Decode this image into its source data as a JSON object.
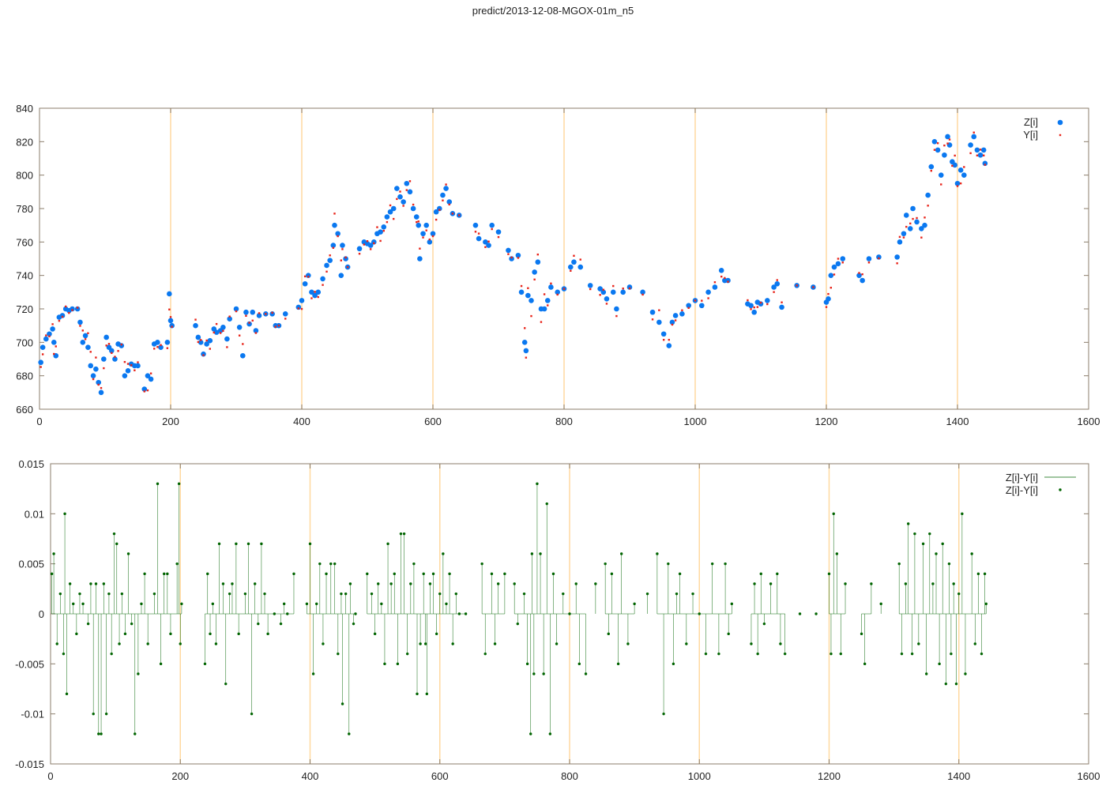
{
  "chart_data": [
    {
      "type": "scatter",
      "title": "predict/2013-12-08-MGOX-01m_n5",
      "xlim": [
        0,
        1600
      ],
      "ylim": [
        660,
        840
      ],
      "xticks": [
        0,
        200,
        400,
        600,
        800,
        1000,
        1200,
        1400,
        1600
      ],
      "yticks": [
        660,
        680,
        700,
        720,
        740,
        760,
        780,
        800,
        820,
        840
      ],
      "grid": "vertical at x ticks",
      "legend": "top-right",
      "series": [
        {
          "name": "Z[i]",
          "color": "#0a78f0",
          "marker": "large-dot"
        },
        {
          "name": "Y[i]",
          "color": "#e8241a",
          "marker": "small-dot",
          "derived": "Y = Z / (1 + residual)"
        }
      ]
    },
    {
      "type": "line",
      "xlim": [
        0,
        1600
      ],
      "ylim": [
        -0.015,
        0.015
      ],
      "xticks": [
        0,
        200,
        400,
        600,
        800,
        1000,
        1200,
        1400,
        1600
      ],
      "yticks": [
        -0.015,
        -0.01,
        -0.005,
        0,
        0.005,
        0.01,
        0.015
      ],
      "ytick_labels": [
        "-0.015",
        "-0.01",
        "-0.005",
        "0",
        "0.005",
        "0.01",
        "0.015"
      ],
      "grid": "vertical at x ticks",
      "legend": "top-right",
      "series": [
        {
          "name": "Z[i]-Y[i]",
          "color": "#006400",
          "style": "impulses"
        },
        {
          "name": "Z[i]-Y[i]",
          "color": "#006400",
          "style": "points"
        }
      ]
    }
  ],
  "points_columns": [
    "x",
    "Z",
    "residual"
  ],
  "points": [
    [
      2,
      688,
      0.004
    ],
    [
      5,
      697,
      0.006
    ],
    [
      10,
      702,
      -0.003
    ],
    [
      15,
      705,
      0.002
    ],
    [
      20,
      708,
      -0.004
    ],
    [
      22,
      700,
      0.01
    ],
    [
      25,
      692,
      -0.008
    ],
    [
      30,
      715,
      0.003
    ],
    [
      35,
      716,
      0.001
    ],
    [
      40,
      720,
      -0.002
    ],
    [
      45,
      719,
      0.002
    ],
    [
      50,
      720,
      0.001
    ],
    [
      58,
      720,
      -0.001
    ],
    [
      62,
      712,
      0.003
    ],
    [
      66,
      700,
      -0.01
    ],
    [
      70,
      704,
      0.003
    ],
    [
      74,
      697,
      -0.012
    ],
    [
      78,
      686,
      -0.012
    ],
    [
      82,
      680,
      0.003
    ],
    [
      86,
      684,
      -0.01
    ],
    [
      90,
      676,
      0.002
    ],
    [
      94,
      670,
      -0.004
    ],
    [
      98,
      690,
      0.008
    ],
    [
      102,
      703,
      0.007
    ],
    [
      106,
      697,
      -0.003
    ],
    [
      110,
      695,
      0.002
    ],
    [
      115,
      690,
      -0.002
    ],
    [
      120,
      699,
      0.006
    ],
    [
      125,
      698,
      -0.001
    ],
    [
      130,
      680,
      -0.012
    ],
    [
      135,
      683,
      -0.006
    ],
    [
      140,
      687,
      0.001
    ],
    [
      145,
      686,
      0.004
    ],
    [
      150,
      686,
      -0.003
    ],
    [
      160,
      672,
      0.002
    ],
    [
      165,
      680,
      0.013
    ],
    [
      170,
      678,
      -0.005
    ],
    [
      175,
      699,
      0.004
    ],
    [
      180,
      700,
      0.004
    ],
    [
      185,
      697,
      -0.002
    ],
    [
      195,
      700,
      0.005
    ],
    [
      198,
      729,
      0.013
    ],
    [
      200,
      713,
      -0.003
    ],
    [
      202,
      710,
      0.001
    ],
    [
      238,
      710,
      -0.005
    ],
    [
      242,
      703,
      0.004
    ],
    [
      246,
      700,
      -0.002
    ],
    [
      250,
      693,
      0.001
    ],
    [
      255,
      699,
      -0.003
    ],
    [
      260,
      701,
      0.007
    ],
    [
      266,
      708,
      0.003
    ],
    [
      270,
      706,
      -0.007
    ],
    [
      276,
      707,
      0.002
    ],
    [
      280,
      709,
      0.003
    ],
    [
      286,
      702,
      0.007
    ],
    [
      290,
      714,
      -0.002
    ],
    [
      300,
      720,
      0.002
    ],
    [
      305,
      709,
      0.007
    ],
    [
      310,
      692,
      -0.01
    ],
    [
      315,
      718,
      0.003
    ],
    [
      320,
      711,
      -0.001
    ],
    [
      325,
      718,
      0.007
    ],
    [
      330,
      707,
      0.002
    ],
    [
      335,
      716,
      -0.002
    ],
    [
      345,
      717,
      0.0
    ],
    [
      355,
      717,
      -0.001
    ],
    [
      360,
      710,
      0.001
    ],
    [
      365,
      710,
      0.0
    ],
    [
      375,
      717,
      0.004
    ],
    [
      395,
      721,
      0.001
    ],
    [
      400,
      725,
      0.007
    ],
    [
      405,
      735,
      -0.006
    ],
    [
      410,
      740,
      0.001
    ],
    [
      415,
      730,
      0.005
    ],
    [
      420,
      728,
      -0.003
    ],
    [
      425,
      730,
      0.004
    ],
    [
      432,
      738,
      0.005
    ],
    [
      438,
      746,
      0.005
    ],
    [
      443,
      749,
      -0.004
    ],
    [
      448,
      758,
      0.002
    ],
    [
      450,
      770,
      -0.009
    ],
    [
      455,
      765,
      0.002
    ],
    [
      460,
      740,
      -0.012
    ],
    [
      462,
      758,
      0.003
    ],
    [
      467,
      750,
      -0.001
    ],
    [
      470,
      745,
      0.0
    ],
    [
      488,
      756,
      0.004
    ],
    [
      495,
      760,
      0.002
    ],
    [
      500,
      759,
      -0.002
    ],
    [
      505,
      758,
      0.003
    ],
    [
      510,
      760,
      0.001
    ],
    [
      515,
      765,
      -0.005
    ],
    [
      520,
      766,
      0.007
    ],
    [
      525,
      769,
      0.003
    ],
    [
      530,
      775,
      0.004
    ],
    [
      535,
      778,
      -0.005
    ],
    [
      540,
      780,
      0.008
    ],
    [
      545,
      792,
      0.008
    ],
    [
      550,
      787,
      -0.004
    ],
    [
      555,
      784,
      0.003
    ],
    [
      560,
      795,
      0.005
    ],
    [
      565,
      790,
      -0.008
    ],
    [
      570,
      780,
      -0.003
    ],
    [
      575,
      775,
      0.004
    ],
    [
      578,
      770,
      -0.003
    ],
    [
      580,
      750,
      -0.008
    ],
    [
      585,
      765,
      0.003
    ],
    [
      590,
      770,
      0.004
    ],
    [
      595,
      760,
      -0.002
    ],
    [
      600,
      765,
      0.002
    ],
    [
      605,
      778,
      0.006
    ],
    [
      610,
      780,
      0.001
    ],
    [
      615,
      788,
      0.004
    ],
    [
      620,
      792,
      -0.003
    ],
    [
      625,
      784,
      0.002
    ],
    [
      630,
      777,
      0.0
    ],
    [
      640,
      776,
      0.0
    ],
    [
      665,
      770,
      0.005
    ],
    [
      670,
      762,
      -0.004
    ],
    [
      680,
      760,
      0.004
    ],
    [
      685,
      758,
      -0.003
    ],
    [
      690,
      770,
      0.003
    ],
    [
      700,
      766,
      0.004
    ],
    [
      715,
      755,
      0.003
    ],
    [
      720,
      750,
      -0.001
    ],
    [
      730,
      752,
      0.002
    ],
    [
      735,
      730,
      -0.005
    ],
    [
      740,
      700,
      -0.012
    ],
    [
      742,
      695,
      0.006
    ],
    [
      745,
      728,
      -0.006
    ],
    [
      750,
      725,
      0.013
    ],
    [
      755,
      742,
      0.006
    ],
    [
      760,
      748,
      -0.006
    ],
    [
      765,
      720,
      0.011
    ],
    [
      770,
      720,
      -0.012
    ],
    [
      775,
      725,
      0.004
    ],
    [
      780,
      733,
      -0.003
    ],
    [
      790,
      730,
      0.002
    ],
    [
      800,
      732,
      0.0
    ],
    [
      810,
      745,
      0.003
    ],
    [
      815,
      748,
      -0.005
    ],
    [
      825,
      745,
      -0.006
    ],
    [
      840,
      734,
      0.003
    ],
    [
      855,
      732,
      0.005
    ],
    [
      860,
      730,
      -0.002
    ],
    [
      865,
      726,
      0.004
    ],
    [
      875,
      730,
      -0.005
    ],
    [
      880,
      720,
      0.006
    ],
    [
      890,
      730,
      -0.003
    ],
    [
      900,
      733,
      0.001
    ],
    [
      920,
      730,
      0.002
    ],
    [
      935,
      718,
      0.006
    ],
    [
      945,
      712,
      -0.01
    ],
    [
      952,
      705,
      0.005
    ],
    [
      960,
      698,
      -0.005
    ],
    [
      965,
      712,
      0.002
    ],
    [
      970,
      716,
      0.004
    ],
    [
      980,
      717,
      -0.003
    ],
    [
      990,
      722,
      0.002
    ],
    [
      1000,
      725,
      0.0
    ],
    [
      1010,
      722,
      -0.004
    ],
    [
      1020,
      730,
      0.005
    ],
    [
      1030,
      733,
      -0.004
    ],
    [
      1040,
      743,
      0.005
    ],
    [
      1045,
      737,
      -0.002
    ],
    [
      1050,
      737,
      0.001
    ],
    [
      1080,
      723,
      -0.003
    ],
    [
      1085,
      722,
      0.003
    ],
    [
      1090,
      718,
      -0.004
    ],
    [
      1095,
      724,
      0.004
    ],
    [
      1100,
      723,
      -0.001
    ],
    [
      1110,
      725,
      0.003
    ],
    [
      1120,
      733,
      0.004
    ],
    [
      1125,
      735,
      -0.003
    ],
    [
      1132,
      721,
      -0.004
    ],
    [
      1155,
      734,
      0.0
    ],
    [
      1180,
      733,
      0.0
    ],
    [
      1200,
      724,
      0.004
    ],
    [
      1203,
      726,
      -0.004
    ],
    [
      1207,
      740,
      0.01
    ],
    [
      1212,
      745,
      0.006
    ],
    [
      1218,
      747,
      -0.004
    ],
    [
      1225,
      750,
      0.003
    ],
    [
      1250,
      740,
      -0.002
    ],
    [
      1255,
      737,
      -0.005
    ],
    [
      1265,
      750,
      0.003
    ],
    [
      1280,
      751,
      0.001
    ],
    [
      1308,
      751,
      0.005
    ],
    [
      1312,
      760,
      -0.004
    ],
    [
      1318,
      765,
      0.003
    ],
    [
      1322,
      776,
      0.009
    ],
    [
      1328,
      768,
      -0.004
    ],
    [
      1332,
      780,
      0.008
    ],
    [
      1338,
      772,
      -0.003
    ],
    [
      1345,
      768,
      0.007
    ],
    [
      1350,
      770,
      -0.006
    ],
    [
      1355,
      788,
      0.008
    ],
    [
      1360,
      805,
      0.003
    ],
    [
      1365,
      820,
      0.006
    ],
    [
      1370,
      815,
      -0.005
    ],
    [
      1375,
      800,
      0.007
    ],
    [
      1380,
      812,
      -0.007
    ],
    [
      1385,
      823,
      0.005
    ],
    [
      1388,
      818,
      -0.004
    ],
    [
      1392,
      808,
      0.003
    ],
    [
      1396,
      806,
      -0.007
    ],
    [
      1400,
      795,
      0.002
    ],
    [
      1405,
      803,
      0.01
    ],
    [
      1410,
      800,
      -0.006
    ],
    [
      1420,
      818,
      0.006
    ],
    [
      1425,
      823,
      -0.003
    ],
    [
      1430,
      815,
      0.004
    ],
    [
      1435,
      812,
      -0.004
    ],
    [
      1440,
      815,
      0.004
    ],
    [
      1442,
      807,
      0.001
    ]
  ]
}
